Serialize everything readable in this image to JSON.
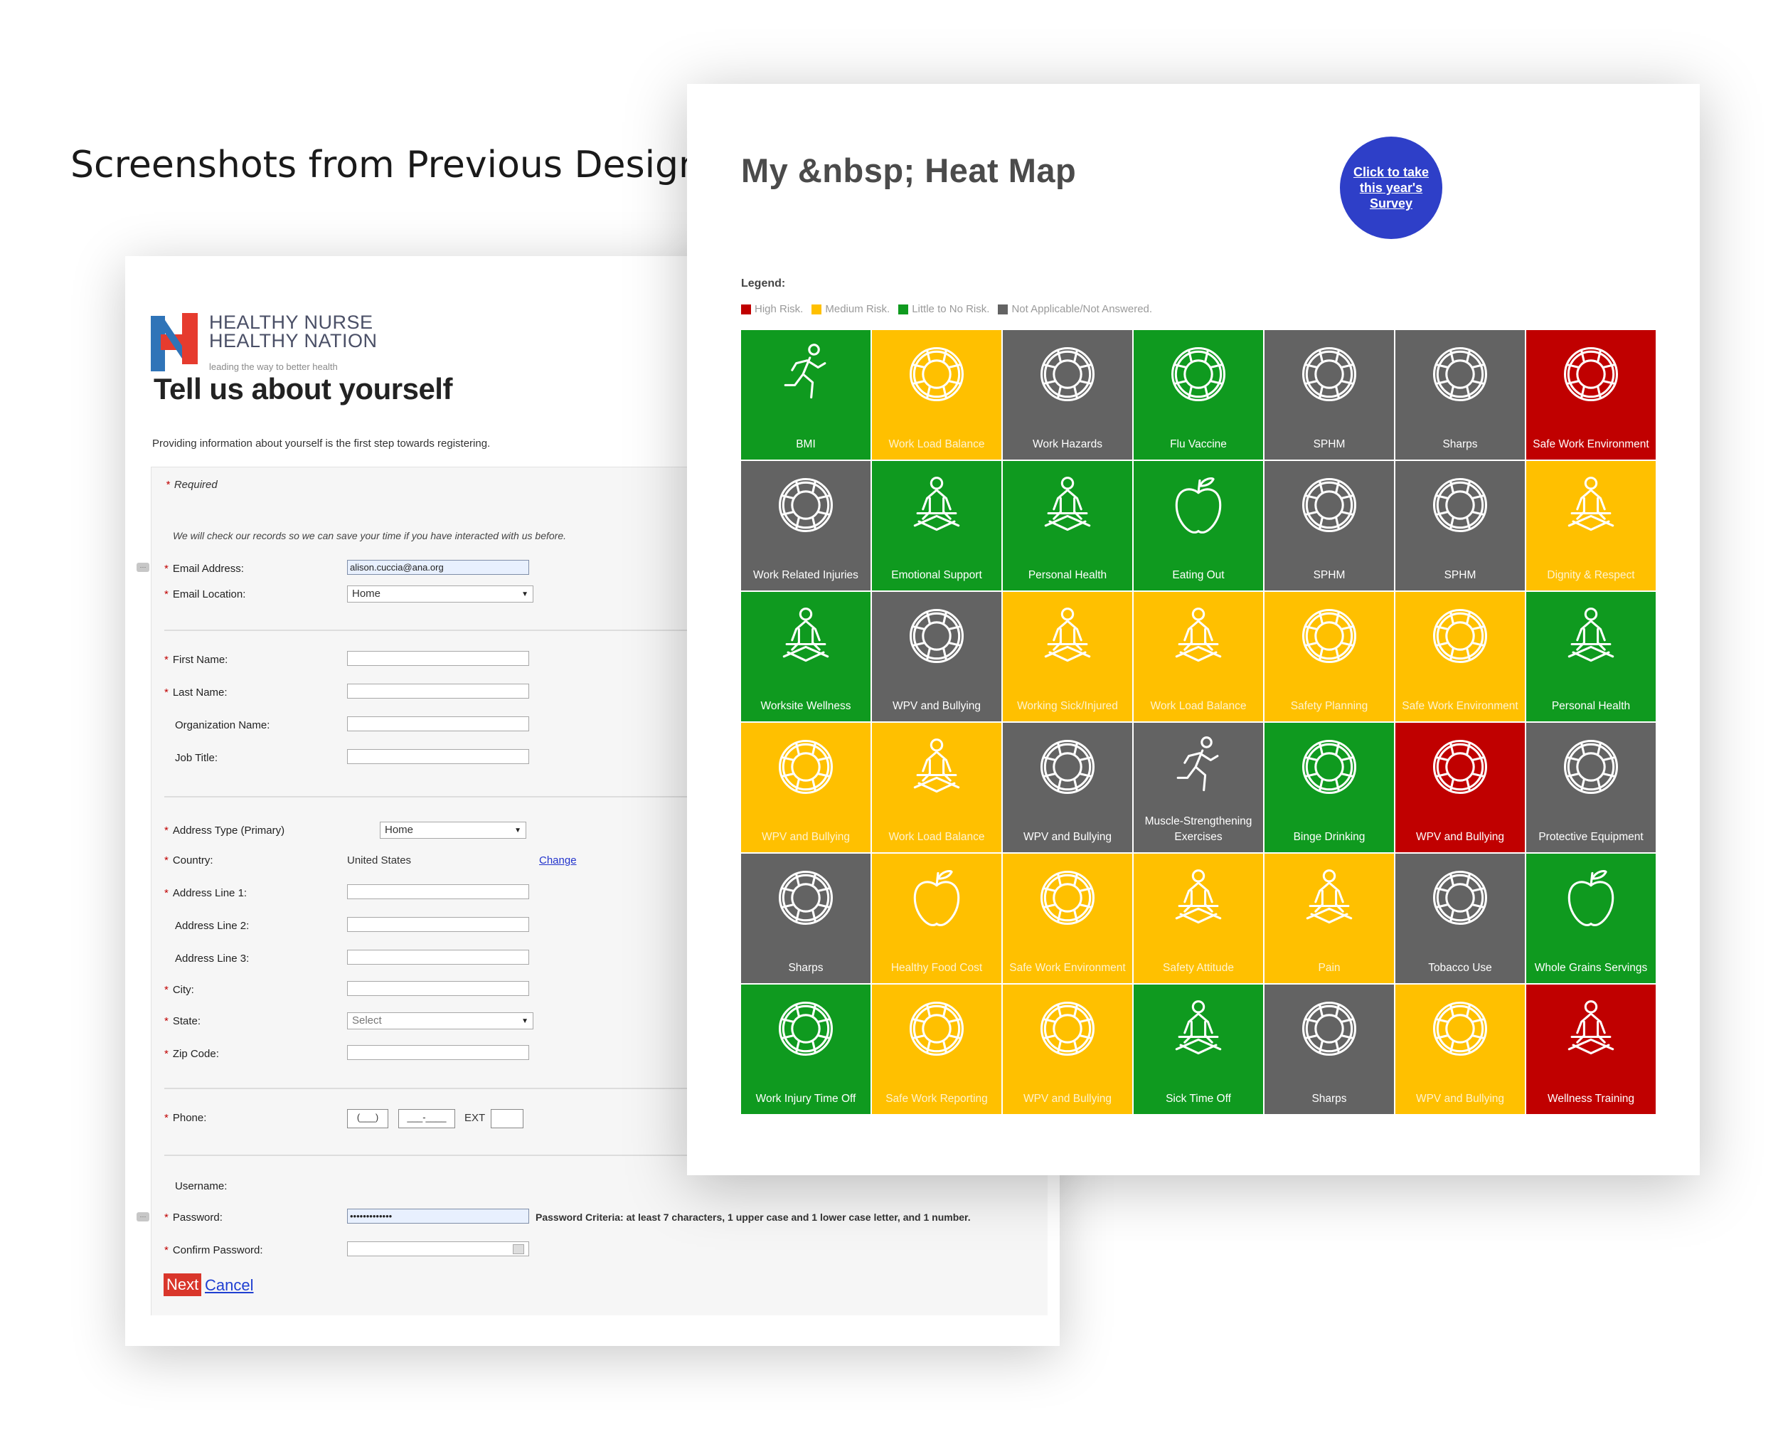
{
  "caption": "Screenshots from Previous Design",
  "colors": {
    "high": "#c00000",
    "medium": "#ffc000",
    "low": "#0f9a1f",
    "na": "#636363",
    "survey_button": "#2e3fc8",
    "next_button": "#d9362b"
  },
  "registration": {
    "logo": {
      "line1": "HEALTHY NURSE",
      "line2": "HEALTHY NATION",
      "tagline": "leading the way to better health"
    },
    "title": "Tell us about yourself",
    "intro": "Providing information about yourself is the first step towards registering.",
    "required_note": "Required",
    "records_note": "We will check our records so we can save your time if you have interacted with us before.",
    "email_label": "Email Address:",
    "email_value": "alison.cuccia@ana.org",
    "email_location_label": "Email Location:",
    "email_location_value": "Home",
    "first_name_label": "First Name:",
    "last_name_label": "Last Name:",
    "org_label": "Organization Name:",
    "job_label": "Job Title:",
    "address_type_label": "Address Type (Primary)",
    "address_type_value": "Home",
    "country_label": "Country:",
    "country_value": "United States",
    "change_label": "Change",
    "addr1_label": "Address Line 1:",
    "addr2_label": "Address Line 2:",
    "addr3_label": "Address Line 3:",
    "city_label": "City:",
    "state_label": "State:",
    "state_value": "Select",
    "zip_label": "Zip Code:",
    "phone_label": "Phone:",
    "phone_area": "(___)",
    "phone_number": "___-____",
    "ext_label": "EXT",
    "username_label": "Username:",
    "password_label": "Password:",
    "password_value": "•••••••••••••",
    "password_criteria": "Password Criteria: at least 7 characters, 1 upper case and 1 lower case letter, and 1 number.",
    "confirm_label": "Confirm Password:",
    "next_label": "Next",
    "cancel_label": "Cancel"
  },
  "heatmap": {
    "title": "My &nbsp; Heat Map",
    "survey_button": "Click to take this year's Survey",
    "legend_title": "Legend:",
    "legend": [
      {
        "risk": "high",
        "label": "High Risk."
      },
      {
        "risk": "medium",
        "label": "Medium Risk."
      },
      {
        "risk": "low",
        "label": "Little to No Risk."
      },
      {
        "risk": "na",
        "label": "Not Applicable/Not Answered."
      }
    ],
    "tiles": [
      {
        "label": "BMI",
        "risk": "low",
        "icon": "runner-icon"
      },
      {
        "label": "Work Load Balance",
        "risk": "medium",
        "icon": "lifebuoy-icon"
      },
      {
        "label": "Work Hazards",
        "risk": "na",
        "icon": "lifebuoy-icon"
      },
      {
        "label": "Flu Vaccine",
        "risk": "low",
        "icon": "lifebuoy-icon"
      },
      {
        "label": "SPHM",
        "risk": "na",
        "icon": "lifebuoy-icon"
      },
      {
        "label": "Sharps",
        "risk": "na",
        "icon": "lifebuoy-icon"
      },
      {
        "label": "Safe Work Environment",
        "risk": "high",
        "icon": "lifebuoy-icon"
      },
      {
        "label": "Work Related Injuries",
        "risk": "na",
        "icon": "lifebuoy-icon"
      },
      {
        "label": "Emotional Support",
        "risk": "low",
        "icon": "meditation-icon"
      },
      {
        "label": "Personal Health",
        "risk": "low",
        "icon": "meditation-icon"
      },
      {
        "label": "Eating Out",
        "risk": "low",
        "icon": "apple-icon"
      },
      {
        "label": "SPHM",
        "risk": "na",
        "icon": "lifebuoy-icon"
      },
      {
        "label": "SPHM",
        "risk": "na",
        "icon": "lifebuoy-icon"
      },
      {
        "label": "Dignity & Respect",
        "risk": "medium",
        "icon": "meditation-icon"
      },
      {
        "label": "Worksite Wellness",
        "risk": "low",
        "icon": "meditation-icon"
      },
      {
        "label": "WPV and Bullying",
        "risk": "na",
        "icon": "lifebuoy-icon"
      },
      {
        "label": "Working Sick/Injured",
        "risk": "medium",
        "icon": "meditation-icon"
      },
      {
        "label": "Work Load Balance",
        "risk": "medium",
        "icon": "meditation-icon"
      },
      {
        "label": "Safety Planning",
        "risk": "medium",
        "icon": "lifebuoy-icon"
      },
      {
        "label": "Safe Work Environment",
        "risk": "medium",
        "icon": "lifebuoy-icon"
      },
      {
        "label": "Personal Health",
        "risk": "low",
        "icon": "meditation-icon"
      },
      {
        "label": "WPV and Bullying",
        "risk": "medium",
        "icon": "lifebuoy-icon"
      },
      {
        "label": "Work Load Balance",
        "risk": "medium",
        "icon": "meditation-icon"
      },
      {
        "label": "WPV and Bullying",
        "risk": "na",
        "icon": "lifebuoy-icon"
      },
      {
        "label": "Muscle-Strengthening Exercises",
        "risk": "na",
        "icon": "runner-icon"
      },
      {
        "label": "Binge Drinking",
        "risk": "low",
        "icon": "lifebuoy-icon"
      },
      {
        "label": "WPV and Bullying",
        "risk": "high",
        "icon": "lifebuoy-icon"
      },
      {
        "label": "Protective Equipment",
        "risk": "na",
        "icon": "lifebuoy-icon"
      },
      {
        "label": "Sharps",
        "risk": "na",
        "icon": "lifebuoy-icon"
      },
      {
        "label": "Healthy Food Cost",
        "risk": "medium",
        "icon": "apple-icon"
      },
      {
        "label": "Safe Work Environment",
        "risk": "medium",
        "icon": "lifebuoy-icon"
      },
      {
        "label": "Safety Attitude",
        "risk": "medium",
        "icon": "meditation-icon"
      },
      {
        "label": "Pain",
        "risk": "medium",
        "icon": "meditation-icon"
      },
      {
        "label": "Tobacco Use",
        "risk": "na",
        "icon": "lifebuoy-icon"
      },
      {
        "label": "Whole Grains Servings",
        "risk": "low",
        "icon": "apple-icon"
      },
      {
        "label": "Work Injury Time Off",
        "risk": "low",
        "icon": "lifebuoy-icon"
      },
      {
        "label": "Safe Work Reporting",
        "risk": "medium",
        "icon": "lifebuoy-icon"
      },
      {
        "label": "WPV and Bullying",
        "risk": "medium",
        "icon": "lifebuoy-icon"
      },
      {
        "label": "Sick Time Off",
        "risk": "low",
        "icon": "meditation-icon"
      },
      {
        "label": "Sharps",
        "risk": "na",
        "icon": "lifebuoy-icon"
      },
      {
        "label": "WPV and Bullying",
        "risk": "medium",
        "icon": "lifebuoy-icon"
      },
      {
        "label": "Wellness Training",
        "risk": "high",
        "icon": "meditation-icon"
      }
    ]
  }
}
